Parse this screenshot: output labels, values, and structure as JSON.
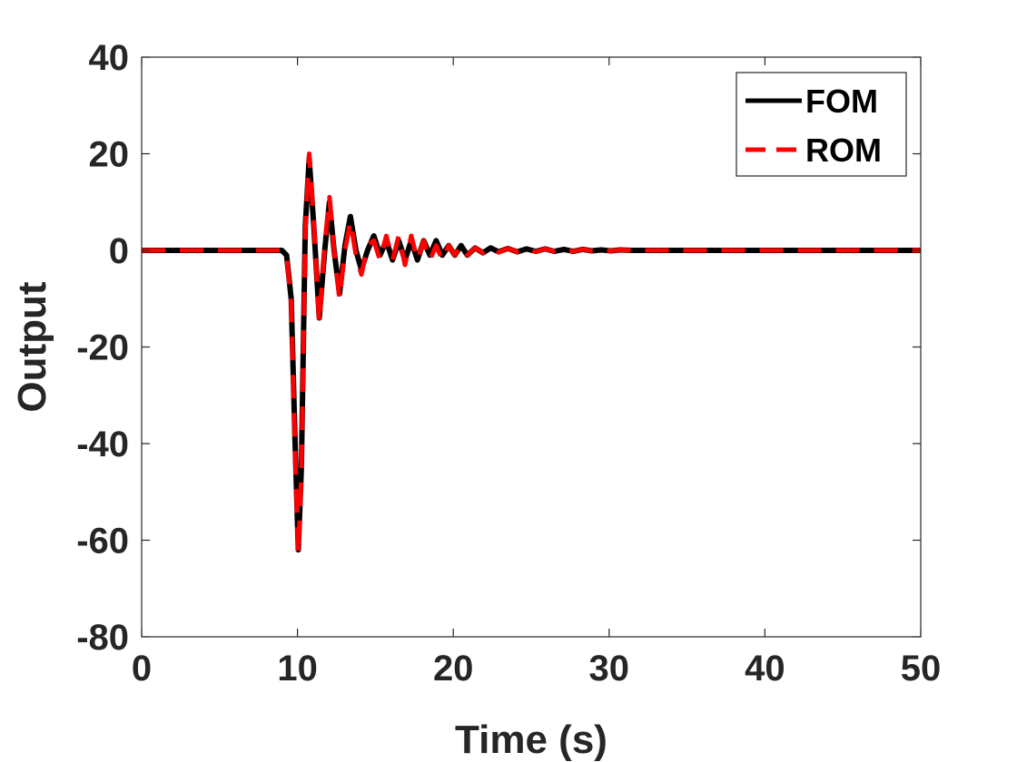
{
  "chart_data": {
    "type": "line",
    "title": "",
    "xlabel": "Time (s)",
    "ylabel": "Output",
    "xlim": [
      0,
      50
    ],
    "ylim": [
      -80,
      40
    ],
    "xticks": [
      0,
      10,
      20,
      30,
      40,
      50
    ],
    "yticks": [
      -80,
      -60,
      -40,
      -20,
      0,
      20,
      40
    ],
    "grid": false,
    "legend": "top-right",
    "series": [
      {
        "name": "FOM",
        "color": "#000000",
        "style": "solid",
        "x": [
          0,
          9.0,
          9.3,
          9.6,
          9.85,
          10.05,
          10.25,
          10.5,
          10.75,
          11.05,
          11.4,
          11.75,
          12.05,
          12.35,
          12.7,
          13.05,
          13.4,
          13.75,
          14.1,
          14.5,
          14.9,
          15.3,
          15.7,
          16.1,
          16.5,
          16.9,
          17.3,
          17.7,
          18.1,
          18.5,
          18.9,
          19.3,
          19.7,
          20.1,
          20.5,
          20.9,
          21.4,
          21.9,
          22.4,
          22.9,
          23.5,
          24.1,
          24.7,
          25.3,
          25.9,
          26.5,
          27.1,
          27.7,
          28.3,
          28.9,
          29.5,
          30.1,
          30.7,
          31.5,
          50
        ],
        "y": [
          0,
          0,
          -1,
          -10,
          -40,
          -62,
          -45,
          5,
          19,
          5,
          -14,
          0,
          10,
          0,
          -9,
          1,
          7,
          0,
          -4,
          0,
          3,
          -1,
          2,
          -2,
          2,
          -2,
          2,
          -2,
          2,
          -1,
          2,
          -1,
          1,
          -1,
          1,
          -1,
          0.5,
          -0.5,
          0.5,
          -0.3,
          0.4,
          -0.3,
          0.3,
          -0.2,
          0.3,
          -0.2,
          0.2,
          -0.2,
          0.2,
          -0.1,
          0.1,
          -0.1,
          0.1,
          0,
          0
        ]
      },
      {
        "name": "ROM",
        "color": "#ff0000",
        "style": "dashed",
        "x": [
          0,
          9.0,
          9.3,
          9.6,
          9.85,
          10.05,
          10.25,
          10.5,
          10.75,
          11.05,
          11.4,
          11.75,
          12.05,
          12.35,
          12.7,
          13.05,
          13.4,
          13.75,
          14.1,
          14.5,
          14.9,
          15.3,
          15.7,
          16.1,
          16.5,
          16.9,
          17.3,
          17.7,
          18.1,
          18.5,
          18.9,
          19.3,
          19.7,
          20.1,
          20.5,
          20.9,
          21.4,
          21.9,
          22.4,
          22.9,
          23.5,
          24.1,
          24.7,
          25.3,
          25.9,
          26.5,
          27.1,
          27.7,
          28.3,
          28.9,
          29.5,
          30.1,
          30.7,
          31.5,
          50
        ],
        "y": [
          0,
          0,
          -1,
          -11,
          -42,
          -63,
          -46,
          4,
          20,
          6,
          -15,
          1,
          11,
          0,
          -10,
          0,
          6,
          -1,
          -5,
          1,
          2,
          -2,
          3,
          -2,
          3,
          -3,
          3,
          -2,
          2,
          -2,
          1,
          -2,
          1,
          -1,
          1,
          -1,
          0.5,
          -0.5,
          0.5,
          -0.4,
          0.4,
          -0.3,
          0.3,
          -0.3,
          0.3,
          -0.2,
          0.2,
          -0.2,
          0.2,
          -0.1,
          0.1,
          -0.1,
          0.1,
          0,
          0
        ]
      }
    ]
  }
}
